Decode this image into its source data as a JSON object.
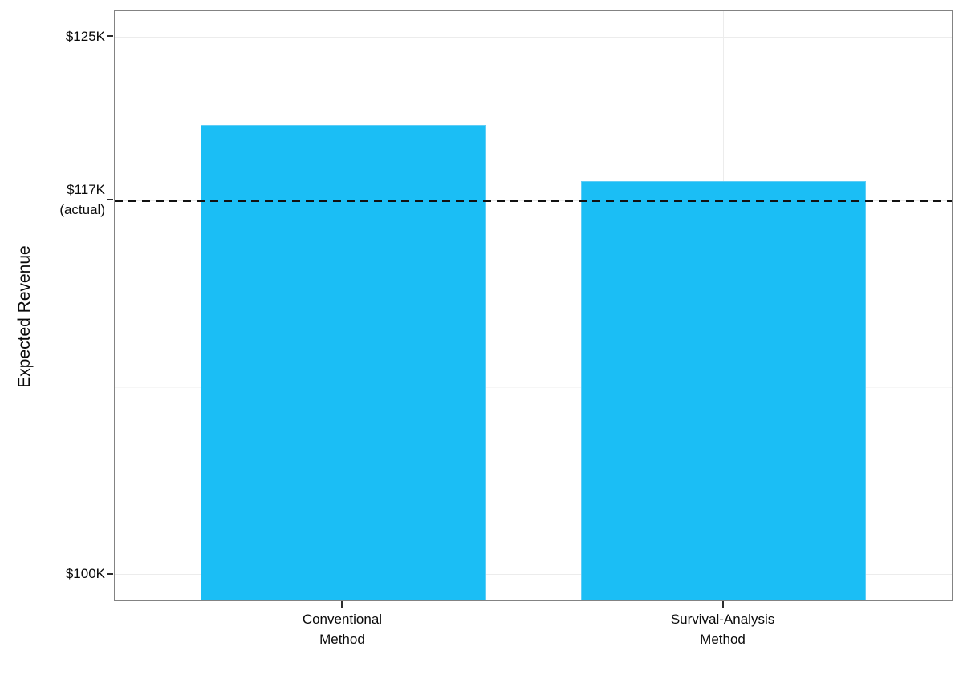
{
  "chart_data": {
    "type": "bar",
    "title": "",
    "xlabel": "",
    "ylabel": "Expected Revenue",
    "unit": "thousand USD",
    "categories": [
      [
        "Conventional",
        "Method"
      ],
      [
        "Survival-Analysis",
        "Method"
      ]
    ],
    "values": [
      120.9,
      118.3
    ],
    "ylim": [
      98.8,
      126.2
    ],
    "yticks": [
      {
        "value": 125,
        "label": "$125K",
        "sublabel": ""
      },
      {
        "value": 117.4,
        "label": "$117K",
        "sublabel": "(actual)"
      },
      {
        "value": 100,
        "label": "$100K",
        "sublabel": ""
      }
    ],
    "reference_line": {
      "value": 117.4,
      "meaning": "actual revenue",
      "style": "dashed",
      "color": "#111111"
    },
    "grid": true,
    "legend": false,
    "bar_fill_color": "#1bbef5",
    "bar_edge_color": "#5fcdf6",
    "panel_border_color": "#838383",
    "gridline_major_color": "#ececec",
    "gridline_minor_color": "#f6f6f6",
    "text_color": "#0a0a0a"
  }
}
